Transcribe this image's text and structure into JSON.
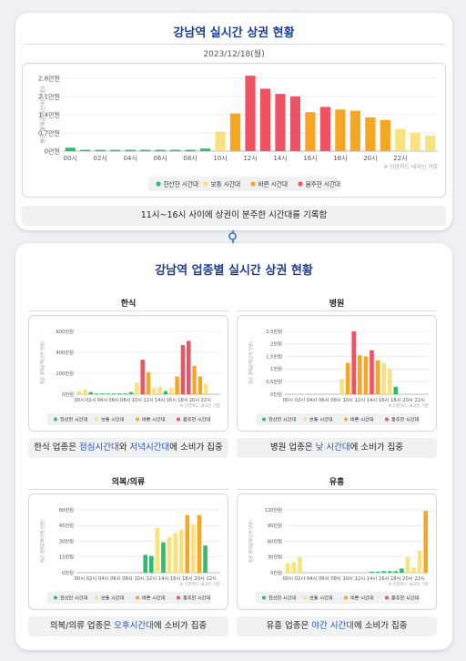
{
  "colors": {
    "quiet": "#2dbe6c",
    "normal": "#f7e27d",
    "busy": "#f6a623",
    "crowded": "#ef5260"
  },
  "legend": [
    {
      "key": "quiet",
      "label": "한산한 시간대"
    },
    {
      "key": "normal",
      "label": "보통 시간대"
    },
    {
      "key": "busy",
      "label": "바쁜 시간대"
    },
    {
      "key": "crowded",
      "label": "붐주한 시간대"
    }
  ],
  "top": {
    "title": "강남역 실시간 상권 현황",
    "date": "2023/12/18(월)",
    "summary": "11시~16시 사이에 상권이 분주한 시간대를 기록함"
  },
  "bottom": {
    "title": "강남역 업종별 실시간 상권 현황"
  },
  "chart_data": [
    {
      "id": "main",
      "type": "bar",
      "ylabel": "평균 결제금액(단위:만원)",
      "source": "※ 신한카드 내국인 기준",
      "yticks": [
        {
          "v": 0,
          "label": "0만원"
        },
        {
          "v": 0.7,
          "label": "0.7만원"
        },
        {
          "v": 1.4,
          "label": "1.4만원"
        },
        {
          "v": 2.1,
          "label": "2.1만원"
        },
        {
          "v": 2.8,
          "label": "2.8만원"
        }
      ],
      "ylim": [
        0,
        2.8
      ],
      "xticks": [
        "00시",
        "02시",
        "04시",
        "06시",
        "08시",
        "10시",
        "12시",
        "14시",
        "16시",
        "18시",
        "20시",
        "22시"
      ],
      "values": [
        0.13,
        0.05,
        0.05,
        0.05,
        0.05,
        0.05,
        0.05,
        0.05,
        0.05,
        0.1,
        0.75,
        1.45,
        2.9,
        2.4,
        2.2,
        2.1,
        1.5,
        1.7,
        1.6,
        1.55,
        1.3,
        1.2,
        0.85,
        0.7,
        0.6
      ],
      "levels": [
        "quiet",
        "quiet",
        "quiet",
        "quiet",
        "quiet",
        "quiet",
        "quiet",
        "quiet",
        "quiet",
        "quiet",
        "normal",
        "busy",
        "crowded",
        "crowded",
        "crowded",
        "crowded",
        "busy",
        "crowded",
        "busy",
        "busy",
        "busy",
        "busy",
        "normal",
        "normal",
        "normal"
      ]
    },
    {
      "id": "hansik",
      "title": "한식",
      "type": "bar",
      "ylabel": "평균 결제금액(단위:만원)",
      "source": "※ 신한카드 내국인 기준",
      "summary_parts": [
        [
          "한식 업종은 ",
          false
        ],
        [
          "점심시간대",
          true
        ],
        [
          "와 ",
          false
        ],
        [
          "저녁시간대",
          true
        ],
        [
          "에 소비가 집중",
          false
        ]
      ],
      "yticks": [
        {
          "v": 0,
          "label": "0만원"
        },
        {
          "v": 200,
          "label": "200만원"
        },
        {
          "v": 400,
          "label": "400만원"
        },
        {
          "v": 600,
          "label": "600만원"
        }
      ],
      "ylim": [
        0,
        600
      ],
      "xticks": [
        "00시",
        "02시",
        "04시",
        "06시",
        "08시",
        "10시",
        "12시",
        "14시",
        "16시",
        "18시",
        "20시",
        "22시"
      ],
      "values": [
        30,
        45,
        20,
        5,
        5,
        5,
        5,
        5,
        5,
        20,
        110,
        330,
        210,
        60,
        70,
        30,
        60,
        170,
        470,
        510,
        270,
        170,
        100,
        0,
        0
      ],
      "levels": [
        "normal",
        "normal",
        "quiet",
        "quiet",
        "quiet",
        "quiet",
        "quiet",
        "quiet",
        "quiet",
        "quiet",
        "normal",
        "crowded",
        "busy",
        "normal",
        "normal",
        "quiet",
        "normal",
        "busy",
        "crowded",
        "crowded",
        "busy",
        "busy",
        "normal",
        "normal",
        "normal"
      ]
    },
    {
      "id": "hospital",
      "title": "병원",
      "type": "bar",
      "ylabel": "평균 결제금액(단위:만원)",
      "source": "※ 신한카드 내국인 기준",
      "summary_parts": [
        [
          "병원 업종은 ",
          false
        ],
        [
          "낮 시간대",
          true
        ],
        [
          "에 소비가 집중",
          false
        ]
      ],
      "yticks": [
        {
          "v": 0,
          "label": "0만원"
        },
        {
          "v": 0.5,
          "label": "0.5만원"
        },
        {
          "v": 1.0,
          "label": "1만원"
        },
        {
          "v": 1.5,
          "label": "1.5만원"
        },
        {
          "v": 2.0,
          "label": "2만원"
        },
        {
          "v": 2.5,
          "label": "2.5만원"
        }
      ],
      "ylim": [
        0,
        2.5
      ],
      "xticks": [
        "00시",
        "02시",
        "04시",
        "06시",
        "08시",
        "10시",
        "12시",
        "14시",
        "16시",
        "18시",
        "20시",
        "22시"
      ],
      "values": [
        0,
        0,
        0,
        0,
        0,
        0,
        0,
        0,
        0,
        0.6,
        1.25,
        2.5,
        1.55,
        1.5,
        1.75,
        1.35,
        1.25,
        1.0,
        0.3,
        0,
        0,
        0,
        0,
        0
      ],
      "levels": [
        "quiet",
        "quiet",
        "quiet",
        "quiet",
        "quiet",
        "quiet",
        "quiet",
        "quiet",
        "quiet",
        "normal",
        "busy",
        "crowded",
        "busy",
        "busy",
        "crowded",
        "busy",
        "normal",
        "normal",
        "quiet",
        "quiet",
        "quiet",
        "quiet",
        "quiet",
        "quiet"
      ]
    },
    {
      "id": "clothing",
      "title": "의복/의류",
      "type": "bar",
      "ylabel": "평균 결제금액(단위:만원)",
      "source": "※ 신한카드 내국인 기준",
      "summary_parts": [
        [
          "의복/의류 업종은 ",
          false
        ],
        [
          "오후시간대",
          true
        ],
        [
          "에 소비가 집중",
          false
        ]
      ],
      "yticks": [
        {
          "v": 0,
          "label": "0만원"
        },
        {
          "v": 15,
          "label": "15만원"
        },
        {
          "v": 30,
          "label": "30만원"
        },
        {
          "v": 45,
          "label": "45만원"
        },
        {
          "v": 60,
          "label": "60만원"
        }
      ],
      "ylim": [
        0,
        60
      ],
      "xticks": [
        "00시",
        "02시",
        "04시",
        "06시",
        "08시",
        "10시",
        "12시",
        "14시",
        "16시",
        "18시",
        "20시",
        "22시"
      ],
      "values": [
        0,
        0,
        0,
        0,
        0,
        0,
        0,
        0,
        0,
        0,
        0,
        17,
        16,
        43,
        29,
        34,
        38,
        41,
        55,
        46,
        55,
        26,
        0,
        0
      ],
      "levels": [
        "quiet",
        "quiet",
        "quiet",
        "quiet",
        "quiet",
        "quiet",
        "quiet",
        "quiet",
        "quiet",
        "quiet",
        "quiet",
        "quiet",
        "quiet",
        "normal",
        "quiet",
        "normal",
        "normal",
        "normal",
        "busy",
        "normal",
        "busy",
        "quiet",
        "quiet",
        "quiet"
      ]
    },
    {
      "id": "entertainment",
      "title": "유흥",
      "type": "bar",
      "ylabel": "평균 결제금액(단위:만원)",
      "source": "※ 신한카드 내국인 기준",
      "summary_parts": [
        [
          "유흥 업종은 ",
          false
        ],
        [
          "야간 시간대",
          true
        ],
        [
          "에 소비가 집중",
          false
        ]
      ],
      "yticks": [
        {
          "v": 0,
          "label": "0만원"
        },
        {
          "v": 30,
          "label": "30만원"
        },
        {
          "v": 60,
          "label": "60만원"
        },
        {
          "v": 90,
          "label": "90만원"
        },
        {
          "v": 120,
          "label": "120만원"
        }
      ],
      "ylim": [
        0,
        120
      ],
      "xticks": [
        "00시",
        "02시",
        "04시",
        "06시",
        "08시",
        "10시",
        "12시",
        "14시",
        "16시",
        "18시",
        "20시",
        "22시"
      ],
      "values": [
        18,
        20,
        30,
        0,
        0,
        0,
        0,
        0,
        0,
        0,
        0,
        0,
        0,
        0,
        2,
        2,
        3,
        3,
        3,
        8,
        30,
        10,
        42,
        118
      ],
      "levels": [
        "normal",
        "normal",
        "normal",
        "quiet",
        "quiet",
        "quiet",
        "quiet",
        "quiet",
        "quiet",
        "quiet",
        "quiet",
        "quiet",
        "quiet",
        "quiet",
        "quiet",
        "quiet",
        "quiet",
        "quiet",
        "quiet",
        "quiet",
        "normal",
        "normal",
        "normal",
        "busy"
      ]
    }
  ]
}
